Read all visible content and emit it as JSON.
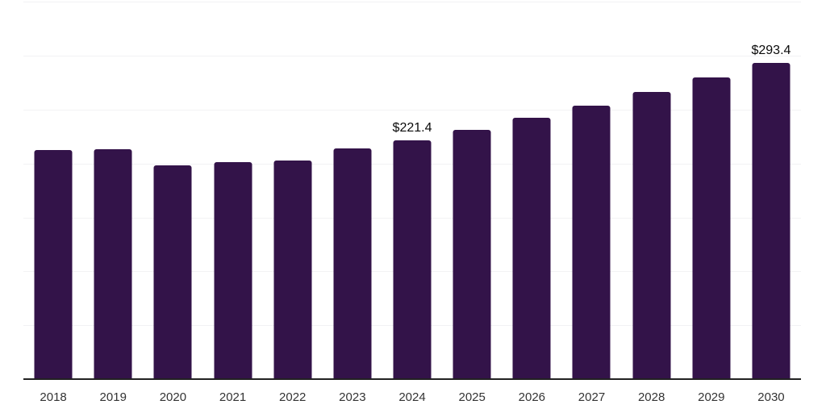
{
  "chart_data": {
    "type": "bar",
    "title": "",
    "xlabel": "",
    "ylabel": "",
    "categories": [
      "2018",
      "2019",
      "2020",
      "2021",
      "2022",
      "2023",
      "2024",
      "2025",
      "2026",
      "2027",
      "2028",
      "2029",
      "2030"
    ],
    "series": [
      {
        "name": "value",
        "values": [
          212.9,
          213.6,
          198.2,
          201.2,
          203.1,
          214.0,
          221.4,
          231.0,
          242.8,
          253.6,
          266.4,
          280.0,
          293.4
        ]
      }
    ],
    "data_labels": [
      {
        "category": "2024",
        "text": "$221.4"
      },
      {
        "category": "2030",
        "text": "$293.4"
      }
    ],
    "ylim": [
      0,
      350
    ],
    "grid_step": 50,
    "grid": "horizontal",
    "y_axis_tick_labels": "none",
    "legend": "none",
    "colors": {
      "bar": "#331349",
      "gridline": "#f2f2f4",
      "axis_line": "#222222",
      "x_tick_label": "#333333",
      "data_label": "#0a0a0a",
      "background": "#ffffff"
    }
  }
}
